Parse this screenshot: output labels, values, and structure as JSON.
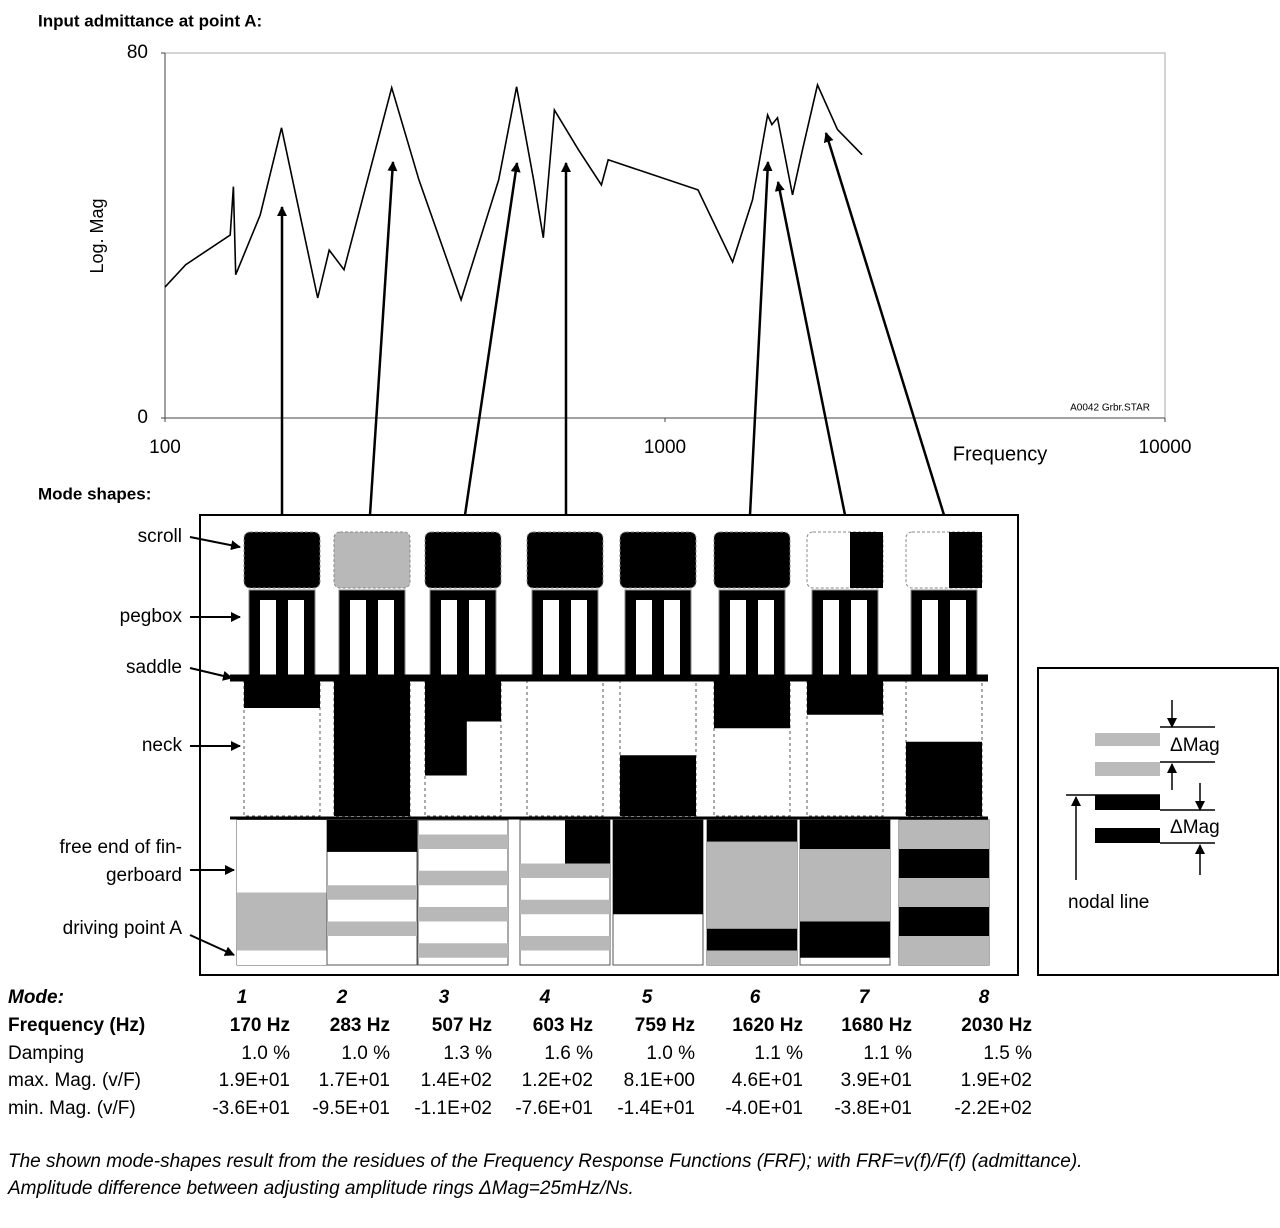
{
  "chart_data": {
    "type": "line",
    "title": "Input admittance at point A:",
    "x_label": "Frequency",
    "y_label": "Log. Mag",
    "annotation": "A0042 Grbr.STAR",
    "x": [
      100,
      110,
      135,
      137,
      138.5,
      155,
      171,
      202,
      213,
      228,
      284,
      322,
      391,
      465,
      505,
      546,
      571,
      601,
      671,
      746,
      770,
      883,
      1164,
      1365,
      1496,
      1604,
      1636,
      1679,
      1799,
      1884,
      2018,
      2213,
      2478
    ],
    "series": [
      {
        "color": "#000000",
        "values": [
          28.7,
          33.6,
          40.1,
          50.7,
          31.4,
          44.5,
          63.6,
          26.3,
          36.8,
          32.5,
          72.4,
          52.2,
          25.9,
          52.2,
          72.6,
          52.2,
          39.5,
          67.5,
          58.8,
          51.1,
          56.6,
          54.4,
          50,
          34.2,
          47.8,
          66.4,
          64.3,
          65.8,
          48.9,
          58.8,
          73,
          63.2,
          57.7
        ]
      }
    ],
    "xlim": [
      100,
      10000
    ],
    "xticks": [
      100,
      1000,
      10000
    ],
    "log_x": true,
    "ylim": [
      0,
      80
    ],
    "yticks": [
      0,
      80
    ],
    "grid": false
  },
  "mode_shapes": {
    "title": "Mode shapes:",
    "part_labels": [
      [
        "scroll"
      ],
      [
        "pegbox"
      ],
      [
        "saddle"
      ],
      [
        "neck"
      ],
      [
        "free end of fin-",
        "gerboard"
      ],
      [
        "driving point A"
      ]
    ],
    "legend": {
      "delta_mag": "ΔMag",
      "nodal_line": "nodal line"
    }
  },
  "table": {
    "row_labels": [
      "Mode:",
      "Frequency (Hz)",
      "Damping",
      "max. Mag. (v/F)",
      "min. Mag. (v/F)"
    ],
    "rows": [
      [
        1,
        2,
        3,
        4,
        5,
        6,
        7,
        8
      ],
      [
        "170 Hz",
        "283 Hz",
        "507 Hz",
        "603 Hz",
        "759 Hz",
        "1620 Hz",
        "1680 Hz",
        "2030 Hz"
      ],
      [
        "1.0 %",
        "1.0 %",
        "1.3 %",
        "1.6 %",
        "1.0 %",
        "1.1 %",
        "1.1 %",
        "1.5 %"
      ],
      [
        "1.9E+01",
        "1.7E+01",
        "1.4E+02",
        "1.2E+02",
        "8.1E+00",
        "4.6E+01",
        "3.9E+01",
        "1.9E+02"
      ],
      [
        "-3.6E+01",
        "-9.5E+01",
        "-1.1E+02",
        "-7.6E+01",
        "-1.4E+01",
        "-4.0E+01",
        "-3.8E+01",
        "-2.2E+02"
      ]
    ]
  },
  "caption": [
    "The shown mode-shapes result from the residues of the Frequency Response Functions (FRF); with FRF=v(f)/F(f) (admittance).",
    "Amplitude difference between adjusting amplitude rings ΔMag=25mHz/Ns."
  ]
}
